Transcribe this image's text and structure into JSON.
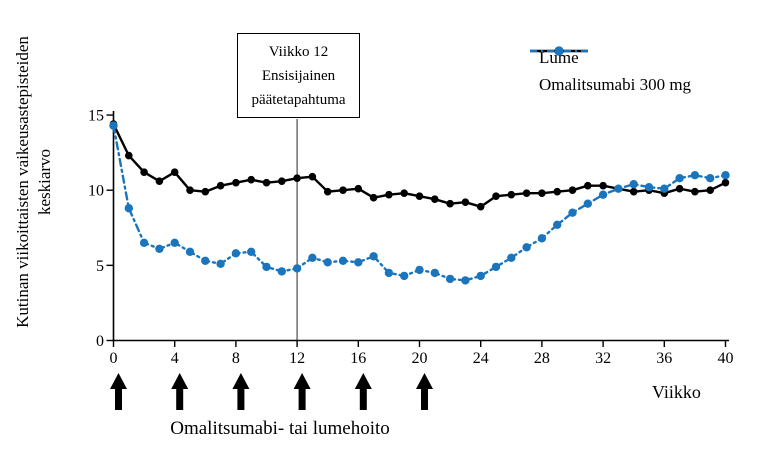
{
  "figure": {
    "ylabel_line1": "Kutinan viikoittaisten vaikeusastepisteiden",
    "ylabel_line2": "keskiarvo",
    "xlabel": "Viikko",
    "treatment_label": "Omalitsumabi- tai lumehoito",
    "annotation": {
      "line1": "Viikko 12",
      "line2": "Ensisijainen",
      "line3": "päätetapahtuma"
    },
    "colors": {
      "lume": "#000000",
      "omalitsumabi": "#1b75bc",
      "axis": "#000000",
      "event_line": "#595959",
      "background": "#ffffff"
    }
  },
  "chart_data": {
    "type": "line",
    "x": [
      0,
      1,
      2,
      3,
      4,
      5,
      6,
      7,
      8,
      9,
      10,
      11,
      12,
      13,
      14,
      15,
      16,
      17,
      18,
      19,
      20,
      21,
      22,
      23,
      24,
      25,
      26,
      27,
      28,
      29,
      30,
      31,
      32,
      33,
      34,
      35,
      36,
      37,
      38,
      39,
      40
    ],
    "series": [
      {
        "name": "Lume",
        "color": "#000000",
        "line_style": "solid",
        "marker": "circle",
        "values": [
          14.4,
          12.3,
          11.2,
          10.6,
          11.2,
          10.0,
          9.9,
          10.3,
          10.5,
          10.7,
          10.5,
          10.6,
          10.8,
          10.9,
          9.9,
          10.0,
          10.1,
          9.5,
          9.7,
          9.8,
          9.6,
          9.4,
          9.1,
          9.2,
          8.9,
          9.6,
          9.7,
          9.8,
          9.8,
          9.9,
          10.0,
          10.3,
          10.3,
          10.1,
          9.9,
          10.0,
          9.8,
          10.1,
          9.9,
          10.0,
          10.5
        ]
      },
      {
        "name": "Omalitsumabi 300 mg",
        "color": "#1b75bc",
        "line_style": "dash-dot",
        "marker": "circle",
        "values": [
          14.3,
          8.8,
          6.5,
          6.1,
          6.5,
          5.9,
          5.3,
          5.1,
          5.8,
          5.9,
          4.9,
          4.6,
          4.8,
          5.5,
          5.2,
          5.3,
          5.2,
          5.6,
          4.5,
          4.3,
          4.7,
          4.5,
          4.1,
          4.0,
          4.3,
          4.9,
          5.5,
          6.2,
          6.8,
          7.7,
          8.5,
          9.1,
          9.7,
          10.1,
          10.4,
          10.2,
          10.1,
          10.8,
          11.0,
          10.8,
          11.0
        ]
      }
    ],
    "xlabel": "Viikko",
    "ylabel": "Kutinan viikoittaisten vaikeusastepisteiden keskiarvo",
    "xticks": [
      0,
      4,
      8,
      12,
      16,
      20,
      24,
      28,
      32,
      36,
      40
    ],
    "yticks": [
      0,
      5,
      10,
      15
    ],
    "xlim": [
      0,
      40
    ],
    "ylim": [
      0,
      15
    ],
    "grid": false,
    "legend_position": "top-right",
    "annotation": {
      "week": 12,
      "lines": [
        "Viikko 12",
        "Ensisijainen",
        "päätetapahtuma"
      ]
    },
    "treatment_arrow_weeks": [
      0,
      4,
      8,
      12,
      16,
      20
    ],
    "treatment_label": "Omalitsumabi- tai lumehoito"
  }
}
